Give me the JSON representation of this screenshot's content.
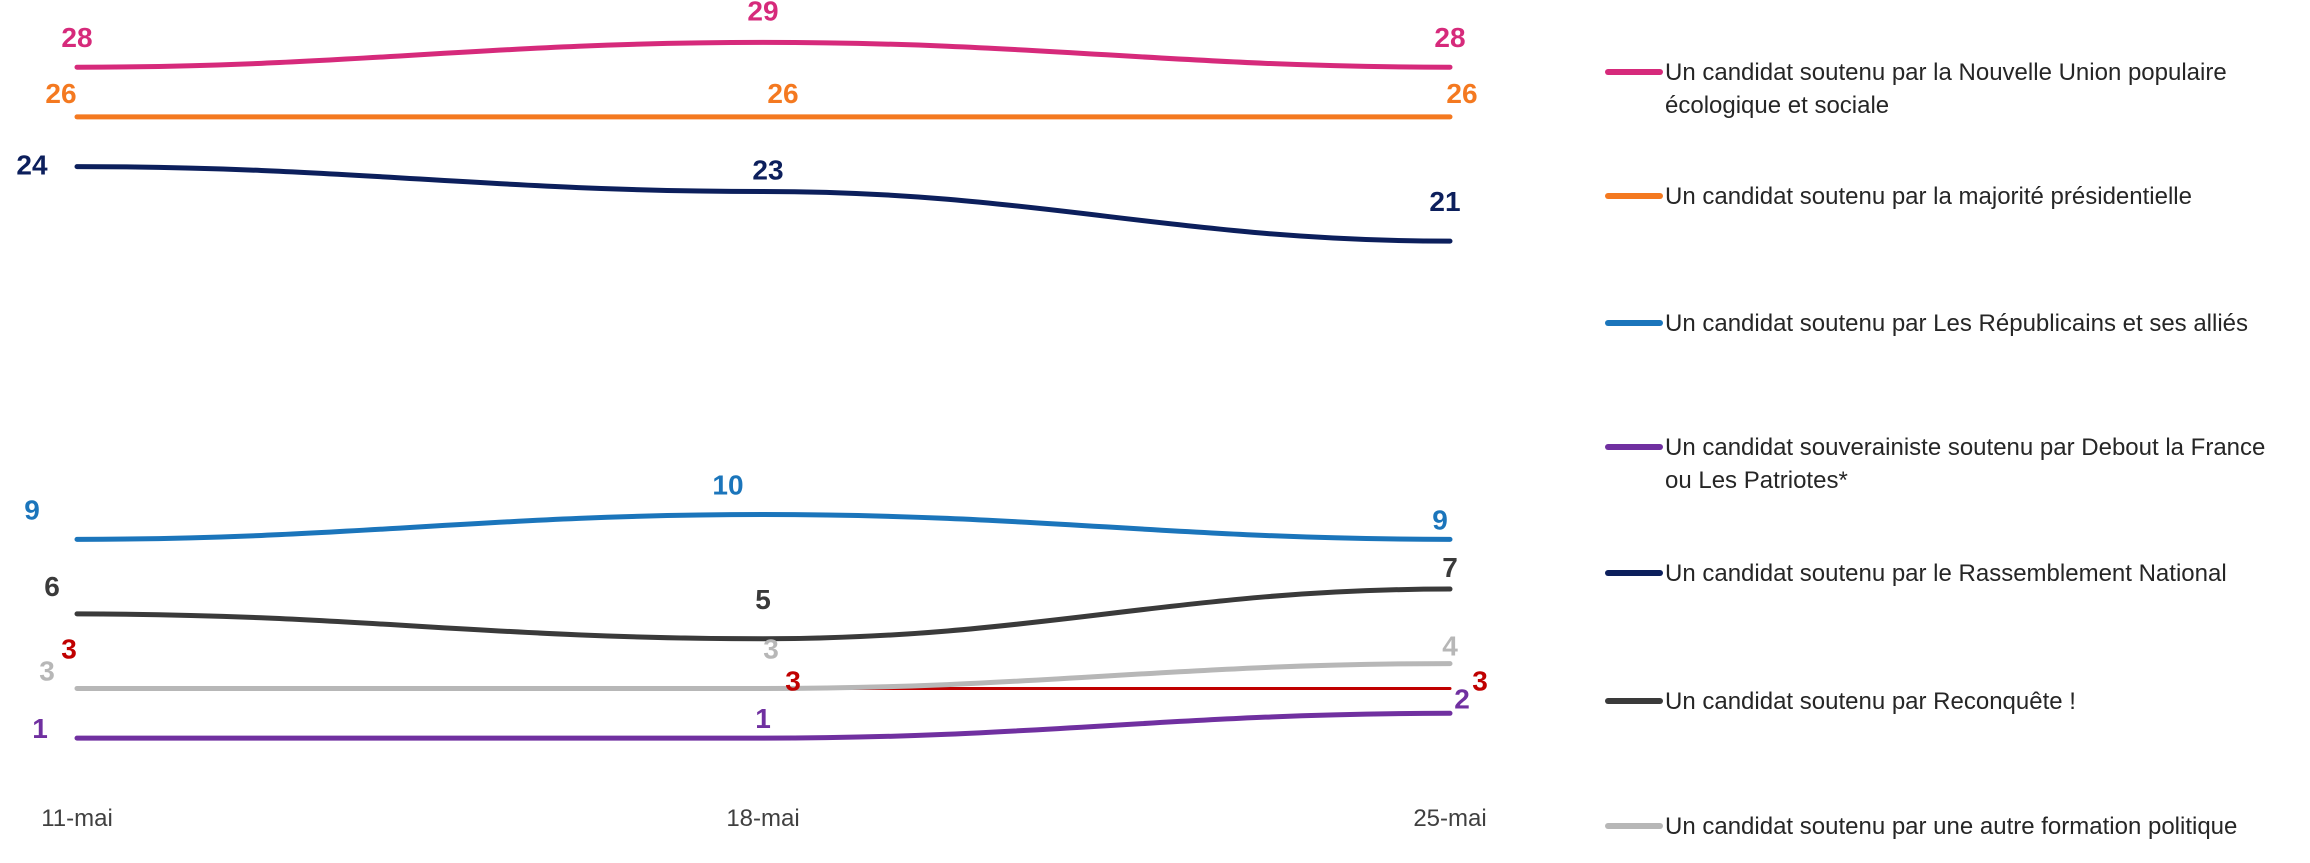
{
  "chart_data": {
    "type": "line",
    "categories": [
      "11-mai",
      "18-mai",
      "25-mai"
    ],
    "ylim": [
      0,
      30
    ],
    "grid": false,
    "legend_position": "right",
    "series": [
      {
        "name": "Un candidat soutenu par la Nouvelle Union populaire écologique et sociale",
        "color": "#d62a7b",
        "values": [
          28,
          29,
          28
        ]
      },
      {
        "name": "Un candidat soutenu par la majorité présidentielle",
        "color": "#f47920",
        "values": [
          26,
          26,
          26
        ]
      },
      {
        "name": "Un candidat soutenu par Les Républicains et ses alliés",
        "color": "#1b75bb",
        "values": [
          9,
          10,
          9
        ]
      },
      {
        "name": "Un candidat souverainiste soutenu par Debout la France ou Les Patriotes*",
        "color": "#7030a0",
        "values": [
          1,
          1,
          2
        ]
      },
      {
        "name": "Un candidat soutenu par le Rassemblement National",
        "color": "#0c1f5c",
        "values": [
          24,
          23,
          21
        ]
      },
      {
        "name": "Un candidat soutenu par Reconquête !",
        "color": "#3a3a3a",
        "values": [
          6,
          5,
          7
        ]
      },
      {
        "name": "Un candidat soutenu par une autre formation politique",
        "color": "#b7b7b7",
        "values": [
          3,
          3,
          4
        ]
      },
      {
        "name": "",
        "color": "#c00000",
        "values": [
          3,
          3,
          3
        ]
      }
    ]
  }
}
